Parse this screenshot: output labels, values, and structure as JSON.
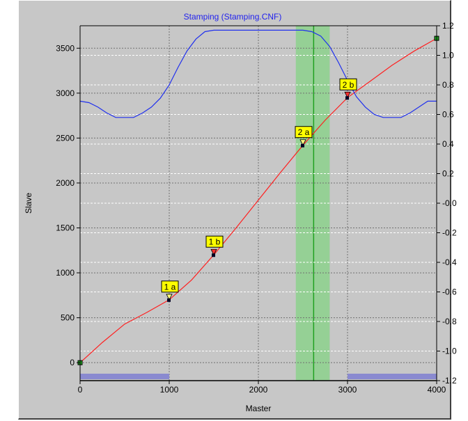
{
  "chart_data": {
    "type": "line",
    "title": "Stamping (Stamping.CNF)",
    "xlabel": "Master",
    "ylabel": "Slave",
    "xlim": [
      0,
      4000
    ],
    "ylim": [
      -200,
      3750
    ],
    "y2lim": [
      -1.2,
      1.2
    ],
    "x_ticks": [
      "0",
      "1000",
      "2000",
      "3000",
      "4000"
    ],
    "x_tick_values": [
      0,
      1000,
      2000,
      3000,
      4000
    ],
    "y_ticks": [
      "0",
      "500",
      "1000",
      "1500",
      "2000",
      "2500",
      "3000",
      "3500"
    ],
    "y_tick_values": [
      0,
      500,
      1000,
      1500,
      2000,
      2500,
      3000,
      3500
    ],
    "y2_ticks": [
      "1.2",
      "1.0",
      "0.8",
      "0.6",
      "0.4",
      "0.2",
      "-0.0",
      "-0.2",
      "-0.4",
      "-0.6",
      "-0.8",
      "-1.0",
      "-1.2"
    ],
    "y2_tick_values": [
      1.2,
      1.0,
      0.8,
      0.6,
      0.4,
      0.2,
      0.0,
      -0.2,
      -0.4,
      -0.6,
      -0.8,
      -1.0,
      -1.2
    ],
    "grid": true,
    "series": [
      {
        "color": "#ff2020",
        "axis": "left",
        "x": [
          0,
          250,
          500,
          750,
          1000,
          1250,
          1500,
          1750,
          2000,
          2250,
          2500,
          2750,
          3000,
          3250,
          3500,
          3750,
          4000
        ],
        "y": [
          0,
          225,
          430,
          560,
          700,
          920,
          1200,
          1500,
          1810,
          2120,
          2420,
          2700,
          2950,
          3130,
          3310,
          3470,
          3610
        ]
      },
      {
        "color": "#2030ee",
        "axis": "right",
        "x": [
          0,
          100,
          200,
          300,
          400,
          500,
          600,
          700,
          800,
          900,
          1000,
          1100,
          1200,
          1300,
          1400,
          1500,
          1600,
          1800,
          2000,
          2200,
          2400,
          2500,
          2600,
          2700,
          2800,
          2900,
          3000,
          3100,
          3200,
          3300,
          3400,
          3500,
          3600,
          3700,
          3800,
          3900,
          4000
        ],
        "y": [
          0.69,
          0.68,
          0.65,
          0.61,
          0.58,
          0.58,
          0.58,
          0.61,
          0.65,
          0.71,
          0.8,
          0.92,
          1.03,
          1.11,
          1.16,
          1.17,
          1.17,
          1.17,
          1.17,
          1.17,
          1.17,
          1.17,
          1.16,
          1.13,
          1.06,
          0.95,
          0.83,
          0.72,
          0.65,
          0.6,
          0.58,
          0.58,
          0.58,
          0.61,
          0.65,
          0.69,
          0.69
        ]
      }
    ],
    "markers": [
      {
        "label": "1 a",
        "x": 1000,
        "y": 700,
        "color": "#ffff80"
      },
      {
        "label": "1 b",
        "x": 1500,
        "y": 1200,
        "color": "#ff3030"
      },
      {
        "label": "2 a",
        "x": 2500,
        "y": 2420,
        "color": "#ffff80"
      },
      {
        "label": "2 b",
        "x": 3000,
        "y": 2950,
        "color": "#ff3030"
      }
    ],
    "endpoints": [
      {
        "x": 0,
        "y": 0
      },
      {
        "x": 4000,
        "y": 3610
      }
    ],
    "highlight_band": {
      "x_start": 2420,
      "x_end": 2800,
      "color": "#8fd08f"
    },
    "cursor_line_x": 2620,
    "bottom_bars": [
      {
        "x_start": 0,
        "x_end": 1000,
        "color": "#8a8ad0"
      },
      {
        "x_start": 3000,
        "x_end": 4000,
        "color": "#8a8ad0"
      }
    ]
  }
}
